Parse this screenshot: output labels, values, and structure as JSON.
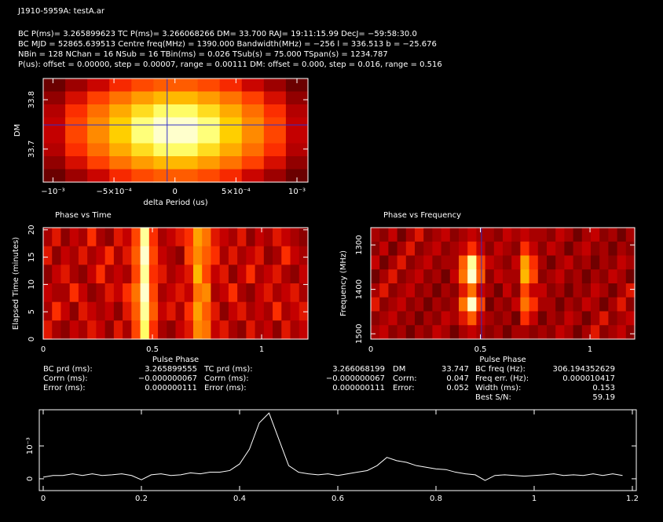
{
  "header": [
    "J1910-5959A: testA.ar",
    "BC P(ms)= 3.265899623 TC P(ms)= 3.266068266 DM= 33.700 RAJ= 19:11:15.99 DecJ= −59:58:30.0",
    "BC MJD = 52865.639513 Centre freq(MHz) = 1390.000 Bandwidth(MHz) = −256 l = 336.513 b = −25.676",
    "NBin = 128 NChan = 16 NSub = 16 TBin(ms) = 0.026 TSub(s) = 75.000 TSpan(s) = 1234.787",
    "P(us): offset = 0.00000, step = 0.00007, range = 0.00111 DM: offset = 0.000, step = 0.016, range = 0.516"
  ],
  "stats": [
    [
      "BC prd (ms):",
      "3.265899555",
      "TC prd (ms):",
      "3.266068199",
      "DM",
      "33.747",
      "BC freq (Hz):",
      "306.194352629"
    ],
    [
      "Corrn (ms):",
      "−0.000000067",
      "Corrn (ms):",
      "−0.000000067",
      "Corrn:",
      "0.047",
      "Freq err. (Hz):",
      "0.000010417"
    ],
    [
      "Error (ms):",
      "0.000000111",
      "Error (ms):",
      "0.000000111",
      "Error:",
      "0.052",
      "Width (ms):",
      "0.153"
    ],
    [
      "Best S/N:",
      "59.19"
    ]
  ],
  "chart_data": [
    {
      "type": "heatmap",
      "colormap": "heat",
      "x_label": "delta Period (us)",
      "y_label": "DM",
      "xlim": [
        -0.00108,
        0.00109
      ],
      "ylim": [
        33.633,
        33.843
      ],
      "xticks": [
        {
          "value": -0.001,
          "label": "−10⁻³"
        },
        {
          "value": -0.0005,
          "label": "−5×10⁻⁴"
        },
        0,
        {
          "value": 0.0005,
          "label": "5×10⁻⁴"
        },
        {
          "value": 0.001,
          "label": "10⁻³"
        }
      ],
      "yticks": [
        33.7,
        33.8
      ],
      "crosshair": {
        "x": -6.4e-05,
        "y": 33.749,
        "color": "#3030c8"
      },
      "values": [
        [
          0.19,
          0.28,
          0.36,
          0.44,
          0.51,
          0.55,
          0.55,
          0.51,
          0.44,
          0.36,
          0.28,
          0.19
        ],
        [
          0.26,
          0.38,
          0.49,
          0.6,
          0.69,
          0.75,
          0.75,
          0.69,
          0.6,
          0.49,
          0.38,
          0.26
        ],
        [
          0.32,
          0.45,
          0.59,
          0.72,
          0.83,
          0.9,
          0.9,
          0.83,
          0.72,
          0.59,
          0.45,
          0.32
        ],
        [
          0.35,
          0.5,
          0.65,
          0.8,
          0.92,
          1,
          1,
          0.92,
          0.8,
          0.65,
          0.5,
          0.35
        ],
        [
          0.35,
          0.5,
          0.65,
          0.8,
          0.92,
          1,
          1,
          0.92,
          0.8,
          0.65,
          0.5,
          0.35
        ],
        [
          0.32,
          0.45,
          0.59,
          0.72,
          0.83,
          0.9,
          0.9,
          0.83,
          0.72,
          0.59,
          0.45,
          0.32
        ],
        [
          0.26,
          0.38,
          0.49,
          0.6,
          0.69,
          0.75,
          0.75,
          0.69,
          0.6,
          0.49,
          0.38,
          0.26
        ],
        [
          0.19,
          0.28,
          0.36,
          0.44,
          0.51,
          0.55,
          0.55,
          0.51,
          0.44,
          0.36,
          0.28,
          0.19
        ]
      ]
    },
    {
      "type": "heatmap",
      "colormap": "heat",
      "title": "Phase vs Time",
      "x_label": "Pulse Phase",
      "y_label": "Elapsed Time (minutes)",
      "xlim": [
        0,
        1.212
      ],
      "ylim": [
        0,
        20.4
      ],
      "xticks": [
        0,
        0.5,
        1
      ],
      "yticks": [
        0,
        5,
        10,
        15,
        20
      ],
      "values": [
        [
          0.3,
          0.4,
          0.25,
          0.35,
          0.3,
          0.45,
          0.3,
          0.25,
          0.4,
          0.35,
          0.5,
          0.95,
          0.45,
          0.3,
          0.35,
          0.4,
          0.45,
          0.7,
          0.6,
          0.4,
          0.35,
          0.3,
          0.4,
          0.25,
          0.35,
          0.3,
          0.4,
          0.35,
          0.3,
          0.25
        ],
        [
          0.4,
          0.25,
          0.35,
          0.3,
          0.4,
          0.3,
          0.35,
          0.45,
          0.3,
          0.4,
          0.55,
          1,
          0.5,
          0.35,
          0.3,
          0.25,
          0.5,
          0.65,
          0.55,
          0.45,
          0.3,
          0.4,
          0.3,
          0.35,
          0.4,
          0.25,
          0.3,
          0.45,
          0.35,
          0.3
        ],
        [
          0.25,
          0.35,
          0.4,
          0.3,
          0.25,
          0.35,
          0.45,
          0.3,
          0.35,
          0.3,
          0.5,
          0.95,
          0.45,
          0.4,
          0.3,
          0.35,
          0.4,
          0.75,
          0.5,
          0.35,
          0.4,
          0.25,
          0.35,
          0.45,
          0.3,
          0.35,
          0.4,
          0.3,
          0.25,
          0.35
        ],
        [
          0.35,
          0.3,
          0.3,
          0.45,
          0.35,
          0.25,
          0.3,
          0.4,
          0.35,
          0.45,
          0.6,
          1,
          0.5,
          0.3,
          0.35,
          0.4,
          0.35,
          0.6,
          0.65,
          0.3,
          0.35,
          0.45,
          0.3,
          0.25,
          0.35,
          0.4,
          0.3,
          0.35,
          0.4,
          0.3
        ],
        [
          0.3,
          0.45,
          0.35,
          0.25,
          0.4,
          0.35,
          0.3,
          0.35,
          0.25,
          0.4,
          0.55,
          0.95,
          0.55,
          0.35,
          0.4,
          0.3,
          0.45,
          0.7,
          0.55,
          0.4,
          0.25,
          0.35,
          0.4,
          0.3,
          0.35,
          0.3,
          0.45,
          0.3,
          0.35,
          0.4
        ],
        [
          0.4,
          0.3,
          0.25,
          0.35,
          0.3,
          0.4,
          0.35,
          0.25,
          0.4,
          0.3,
          0.5,
          0.9,
          0.45,
          0.3,
          0.25,
          0.35,
          0.4,
          0.65,
          0.6,
          0.35,
          0.4,
          0.3,
          0.25,
          0.4,
          0.3,
          0.35,
          0.25,
          0.4,
          0.3,
          0.35
        ]
      ]
    },
    {
      "type": "heatmap",
      "colormap": "heat",
      "title": "Phase vs Frequency",
      "x_label": "Pulse Phase",
      "y_label": "Frequency (MHz)",
      "xlim": [
        0,
        1.204
      ],
      "ylim": [
        1512,
        1261
      ],
      "xticks": [
        0,
        0.5,
        1
      ],
      "yticks": [
        1300,
        1400,
        1500
      ],
      "cursor": {
        "x": 0.505,
        "color": "#3030c8"
      },
      "values": [
        [
          0.3,
          0.25,
          0.35,
          0.2,
          0.3,
          0.4,
          0.25,
          0.3,
          0.35,
          0.25,
          0.3,
          0.35,
          0.3,
          0.3,
          0.25,
          0.35,
          0.3,
          0.35,
          0.3,
          0.3,
          0.25,
          0.35,
          0.3,
          0.2,
          0.3,
          0.35,
          0.25,
          0.3,
          0.2,
          0.3
        ],
        [
          0.25,
          0.35,
          0.2,
          0.3,
          0.4,
          0.25,
          0.3,
          0.35,
          0.25,
          0.3,
          0.35,
          0.45,
          0.35,
          0.25,
          0.35,
          0.3,
          0.25,
          0.45,
          0.35,
          0.25,
          0.35,
          0.3,
          0.2,
          0.3,
          0.35,
          0.25,
          0.3,
          0.2,
          0.3,
          0.25
        ],
        [
          0.35,
          0.2,
          0.3,
          0.4,
          0.25,
          0.3,
          0.35,
          0.25,
          0.3,
          0.3,
          0.55,
          0.95,
          0.5,
          0.35,
          0.3,
          0.25,
          0.35,
          0.7,
          0.45,
          0.3,
          0.2,
          0.3,
          0.35,
          0.25,
          0.3,
          0.2,
          0.3,
          0.25,
          0.35,
          0.3
        ],
        [
          0.2,
          0.3,
          0.4,
          0.25,
          0.3,
          0.35,
          0.25,
          0.3,
          0.2,
          0.35,
          0.6,
          1,
          0.55,
          0.25,
          0.35,
          0.3,
          0.3,
          0.75,
          0.5,
          0.25,
          0.3,
          0.35,
          0.25,
          0.3,
          0.2,
          0.3,
          0.25,
          0.35,
          0.3,
          0.2
        ],
        [
          0.3,
          0.4,
          0.25,
          0.3,
          0.35,
          0.25,
          0.3,
          0.2,
          0.3,
          0.25,
          0.4,
          0.6,
          0.35,
          0.3,
          0.2,
          0.35,
          0.25,
          0.5,
          0.35,
          0.35,
          0.25,
          0.3,
          0.2,
          0.3,
          0.25,
          0.35,
          0.3,
          0.2,
          0.3,
          0.4
        ],
        [
          0.4,
          0.25,
          0.3,
          0.35,
          0.25,
          0.3,
          0.2,
          0.3,
          0.25,
          0.3,
          0.6,
          1,
          0.5,
          0.2,
          0.3,
          0.25,
          0.35,
          0.6,
          0.45,
          0.3,
          0.3,
          0.2,
          0.3,
          0.25,
          0.35,
          0.3,
          0.2,
          0.3,
          0.4,
          0.25
        ],
        [
          0.25,
          0.3,
          0.35,
          0.25,
          0.3,
          0.2,
          0.3,
          0.25,
          0.35,
          0.3,
          0.4,
          0.55,
          0.35,
          0.3,
          0.25,
          0.3,
          0.2,
          0.45,
          0.35,
          0.2,
          0.3,
          0.25,
          0.35,
          0.3,
          0.2,
          0.3,
          0.4,
          0.25,
          0.3,
          0.35
        ],
        [
          0.3,
          0.35,
          0.25,
          0.3,
          0.2,
          0.3,
          0.25,
          0.35,
          0.3,
          0.2,
          0.3,
          0.35,
          0.3,
          0.25,
          0.3,
          0.2,
          0.3,
          0.3,
          0.25,
          0.3,
          0.25,
          0.35,
          0.3,
          0.2,
          0.3,
          0.4,
          0.25,
          0.3,
          0.35,
          0.25
        ]
      ]
    },
    {
      "type": "line",
      "color": "#ffffff",
      "xlim": [
        -0.008,
        1.208
      ],
      "ylim": [
        -0.00036,
        0.0021
      ],
      "xticks": [
        0,
        0.2,
        0.4,
        0.6,
        0.8,
        1,
        1.2
      ],
      "yticks": [
        0,
        {
          "value": 0.001,
          "label": "10⁻³"
        }
      ],
      "x": [
        0,
        0.02,
        0.04,
        0.06,
        0.08,
        0.1,
        0.12,
        0.14,
        0.16,
        0.18,
        0.2,
        0.22,
        0.24,
        0.26,
        0.28,
        0.3,
        0.32,
        0.34,
        0.36,
        0.38,
        0.4,
        0.42,
        0.44,
        0.46,
        0.48,
        0.5,
        0.52,
        0.54,
        0.56,
        0.58,
        0.6,
        0.62,
        0.64,
        0.66,
        0.68,
        0.7,
        0.72,
        0.74,
        0.76,
        0.78,
        0.8,
        0.82,
        0.84,
        0.86,
        0.88,
        0.9,
        0.92,
        0.94,
        0.96,
        0.98,
        1,
        1.02,
        1.04,
        1.06,
        1.08,
        1.1,
        1.12,
        1.14,
        1.16,
        1.18
      ],
      "values": [
        5e-05,
        0.0001,
        0.0001,
        0.00015,
        0.0001,
        0.00015,
        0.0001,
        0.00012,
        0.00015,
        0.0001,
        -3e-05,
        0.00012,
        0.00015,
        0.0001,
        0.00012,
        0.00018,
        0.00015,
        0.0002,
        0.0002,
        0.00025,
        0.00045,
        0.0009,
        0.0017,
        0.002,
        0.0012,
        0.0004,
        0.0002,
        0.00015,
        0.00012,
        0.00015,
        0.0001,
        0.00015,
        0.0002,
        0.00025,
        0.0004,
        0.00065,
        0.00055,
        0.0005,
        0.0004,
        0.00035,
        0.0003,
        0.00028,
        0.0002,
        0.00015,
        0.00012,
        -5e-05,
        0.0001,
        0.00012,
        0.0001,
        8e-05,
        0.0001,
        0.00012,
        0.00015,
        0.0001,
        0.00012,
        0.0001,
        0.00015,
        0.0001,
        0.00015,
        0.0001
      ]
    }
  ]
}
